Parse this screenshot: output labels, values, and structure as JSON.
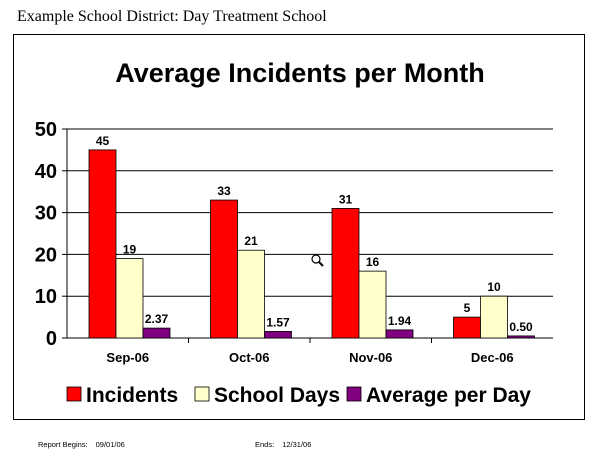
{
  "report": {
    "header": "Example School District: Day Treatment School",
    "begins_label": "Report Begins:",
    "begins_value": "09/01/06",
    "ends_label": "Ends:",
    "ends_value": "12/31/06"
  },
  "chart_data": {
    "type": "bar",
    "title": "Average Incidents per Month",
    "xlabel": "",
    "ylabel": "",
    "categories": [
      "Sep-06",
      "Oct-06",
      "Nov-06",
      "Dec-06"
    ],
    "ylim": [
      0,
      50
    ],
    "yticks": [
      0,
      10,
      20,
      30,
      40,
      50
    ],
    "grid": true,
    "legend_position": "bottom",
    "series": [
      {
        "name": "Incidents",
        "values": [
          45,
          33,
          31,
          5
        ],
        "labels": [
          "45",
          "33",
          "31",
          "5"
        ],
        "color": "#ff0000"
      },
      {
        "name": "School Days",
        "values": [
          19,
          21,
          16,
          10
        ],
        "labels": [
          "19",
          "21",
          "16",
          "10"
        ],
        "color": "#ffffcc"
      },
      {
        "name": "Average per Day",
        "values": [
          2.37,
          1.57,
          1.94,
          0.5
        ],
        "labels": [
          "2.37",
          "1.57",
          "1.94",
          "0.50"
        ],
        "color": "#800080"
      }
    ]
  },
  "icons": {
    "cursor": "magnifier-cursor-icon"
  }
}
